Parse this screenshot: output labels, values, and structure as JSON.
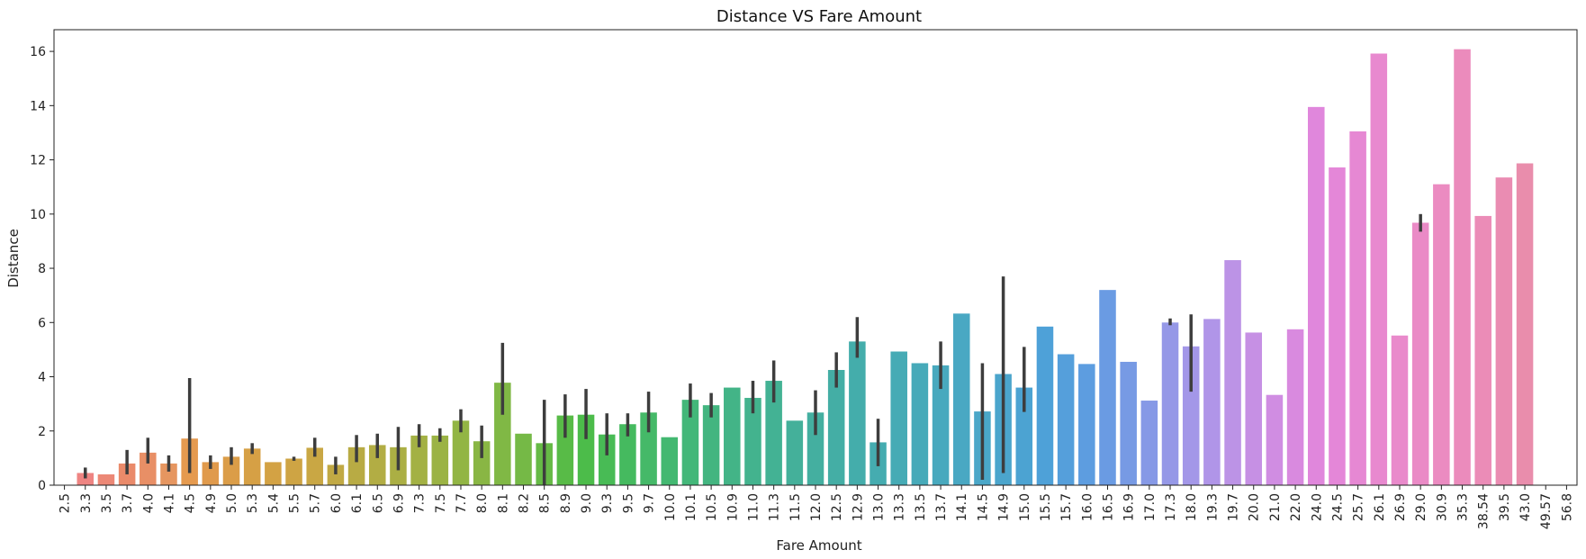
{
  "chart_data": {
    "type": "bar",
    "title": "Distance VS Fare Amount",
    "xlabel": "Fare Amount",
    "ylabel": "Distance",
    "ylim": [
      0,
      16.8
    ],
    "yticks": [
      0,
      2,
      4,
      6,
      8,
      10,
      12,
      14,
      16
    ],
    "grid": false,
    "categories": [
      "2.5",
      "3.3",
      "3.5",
      "3.7",
      "4.0",
      "4.1",
      "4.5",
      "4.9",
      "5.0",
      "5.3",
      "5.4",
      "5.5",
      "5.7",
      "6.0",
      "6.1",
      "6.5",
      "6.9",
      "7.3",
      "7.5",
      "7.7",
      "8.0",
      "8.1",
      "8.2",
      "8.5",
      "8.9",
      "9.0",
      "9.3",
      "9.5",
      "9.7",
      "10.0",
      "10.1",
      "10.5",
      "10.9",
      "11.0",
      "11.3",
      "11.5",
      "12.0",
      "12.5",
      "12.9",
      "13.0",
      "13.3",
      "13.5",
      "13.7",
      "14.1",
      "14.5",
      "14.9",
      "15.0",
      "15.5",
      "15.7",
      "16.0",
      "16.5",
      "16.9",
      "17.0",
      "17.3",
      "18.0",
      "19.3",
      "19.7",
      "20.0",
      "21.0",
      "22.0",
      "24.0",
      "24.5",
      "25.7",
      "26.1",
      "26.9",
      "29.0",
      "30.9",
      "35.3",
      "38.54",
      "39.5",
      "43.0",
      "49.57",
      "56.8"
    ],
    "values": [
      0,
      0.45,
      0.4,
      0.8,
      1.2,
      0.8,
      1.72,
      0.85,
      1.05,
      1.35,
      0.85,
      0.98,
      1.38,
      0.75,
      1.4,
      1.48,
      1.4,
      1.83,
      1.83,
      2.38,
      1.62,
      3.78,
      1.9,
      1.55,
      2.57,
      2.6,
      1.87,
      2.25,
      2.68,
      1.77,
      3.15,
      2.95,
      3.6,
      3.22,
      3.85,
      2.38,
      2.68,
      4.25,
      5.3,
      1.58,
      4.93,
      4.5,
      4.42,
      6.33,
      2.72,
      4.1,
      3.6,
      5.85,
      4.83,
      4.47,
      7.2,
      4.55,
      3.12,
      6.0,
      5.12,
      6.13,
      8.3,
      5.63,
      3.33,
      5.75,
      13.95,
      11.72,
      13.05,
      15.92,
      5.52,
      9.68,
      11.1,
      16.08,
      9.93,
      11.35,
      11.87,
      0,
      0
    ],
    "errors": [
      null,
      [
        0.25,
        0.65
      ],
      null,
      [
        0.4,
        1.3
      ],
      [
        0.8,
        1.75
      ],
      [
        0.5,
        1.1
      ],
      [
        0.45,
        3.95
      ],
      [
        0.6,
        1.1
      ],
      [
        0.75,
        1.4
      ],
      [
        1.15,
        1.55
      ],
      null,
      [
        0.9,
        1.05
      ],
      [
        1.05,
        1.75
      ],
      [
        0.4,
        1.05
      ],
      [
        0.85,
        1.85
      ],
      [
        1.0,
        1.9
      ],
      [
        0.55,
        2.15
      ],
      [
        1.4,
        2.25
      ],
      [
        1.6,
        2.1
      ],
      [
        1.95,
        2.8
      ],
      [
        1.0,
        2.2
      ],
      [
        2.6,
        5.25
      ],
      null,
      [
        0.0,
        3.15
      ],
      [
        1.75,
        3.35
      ],
      [
        1.7,
        3.55
      ],
      [
        1.1,
        2.65
      ],
      [
        1.8,
        2.65
      ],
      [
        1.95,
        3.45
      ],
      null,
      [
        2.5,
        3.75
      ],
      [
        2.5,
        3.4
      ],
      null,
      [
        2.65,
        3.85
      ],
      [
        3.05,
        4.6
      ],
      null,
      [
        1.85,
        3.5
      ],
      [
        3.6,
        4.9
      ],
      [
        4.7,
        6.2
      ],
      [
        0.7,
        2.45
      ],
      null,
      null,
      [
        3.55,
        5.3
      ],
      null,
      [
        0.2,
        4.5
      ],
      [
        0.45,
        7.7
      ],
      [
        2.7,
        5.1
      ],
      null,
      null,
      null,
      null,
      null,
      null,
      [
        5.9,
        6.15
      ],
      [
        3.45,
        6.3
      ],
      null,
      null,
      null,
      null,
      null,
      null,
      null,
      null,
      null,
      null,
      [
        9.35,
        10.0
      ],
      null,
      null,
      null,
      null,
      null,
      null,
      null
    ],
    "colors": [
      "#f08080",
      "#ee8482",
      "#ec8876",
      "#ea8a6a",
      "#e88f66",
      "#e69660",
      "#e59a4f",
      "#e09a4c",
      "#db9d48",
      "#d6a045",
      "#d3a244",
      "#cea444",
      "#c9a744",
      "#c1a944",
      "#b8ab44",
      "#b2ad44",
      "#abaf44",
      "#a3b144",
      "#9bb344",
      "#92b544",
      "#89b644",
      "#80b845",
      "#75b946",
      "#66ba46",
      "#58bb47",
      "#4cbc4a",
      "#48bb55",
      "#45ba5f",
      "#45b968",
      "#43b871",
      "#43b779",
      "#43b580",
      "#43b487",
      "#43b38e",
      "#43b294",
      "#44b09a",
      "#44afa0",
      "#44aea5",
      "#44adab",
      "#45acb0",
      "#46abb5",
      "#47aab9",
      "#48a9be",
      "#49a8c3",
      "#4aa7c8",
      "#4ba5cc",
      "#4ca3d2",
      "#4ea1d8",
      "#559fdb",
      "#5d9de0",
      "#6a9be3",
      "#779ae4",
      "#8699e6",
      "#9598e7",
      "#a397e8",
      "#b095e8",
      "#bc93e6",
      "#c690e4",
      "#d08de2",
      "#d98adf",
      "#e087dc",
      "#e487d8",
      "#e688d3",
      "#e889cf",
      "#e98acb",
      "#ea8ac6",
      "#eb8bc1",
      "#eb8bbc",
      "#eb8cb7",
      "#ea8cb2",
      "#e98dac",
      "#e88da7",
      "#e78da2"
    ]
  }
}
